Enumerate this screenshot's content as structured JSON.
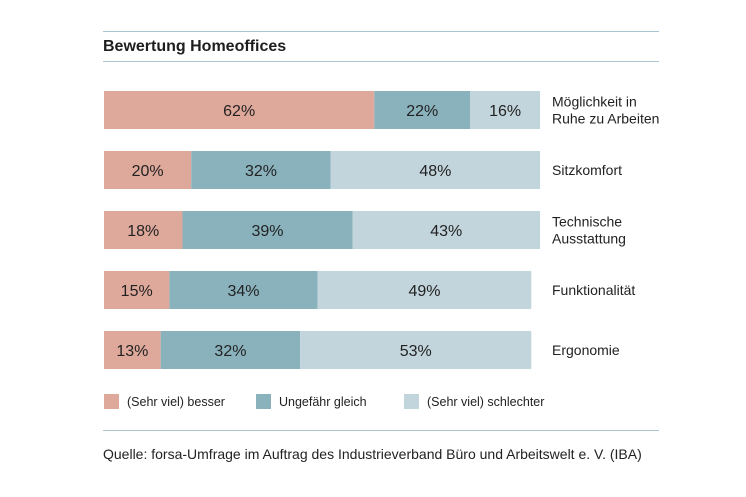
{
  "title": "Bewertung Homeoffices",
  "source": "Quelle: forsa-Umfrage im Auftrag des Industrieverband Büro und Arbeitswelt e. V. (IBA)",
  "colors": {
    "besser": "#dea89b",
    "gleich": "#8ab2bd",
    "schlechter": "#c3d5dc",
    "rule": "#a9c5cf",
    "text": "#222222"
  },
  "chart_data": {
    "type": "bar",
    "orientation": "horizontal",
    "stacked": true,
    "xlim": [
      0,
      100
    ],
    "grid": false,
    "legend_position": "bottom",
    "categories": [
      [
        "Möglichkeit in",
        "Ruhe zu Arbeiten"
      ],
      [
        "Sitzkomfort"
      ],
      [
        "Technische",
        "Ausstattung"
      ],
      [
        "Funktionalität"
      ],
      [
        "Ergonomie"
      ]
    ],
    "series": [
      {
        "name": "(Sehr viel) besser",
        "color_key": "besser",
        "values": [
          62,
          20,
          18,
          15,
          13
        ]
      },
      {
        "name": "Ungefähr gleich",
        "color_key": "gleich",
        "values": [
          22,
          32,
          39,
          34,
          32
        ]
      },
      {
        "name": "(Sehr viel) schlechter",
        "color_key": "schlechter",
        "values": [
          16,
          48,
          43,
          49,
          53
        ]
      }
    ],
    "value_suffix": "%"
  }
}
